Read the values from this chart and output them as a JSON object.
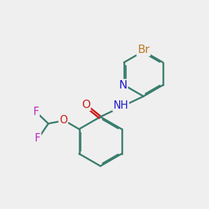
{
  "background_color": "#efefef",
  "bond_color": "#3a7d6e",
  "bond_width": 1.8,
  "dbo": 0.055,
  "atom_colors": {
    "Br": "#b87820",
    "N": "#1818c8",
    "O": "#cc1818",
    "F": "#c020c0",
    "C": "#3a7d6e"
  },
  "font_size": 10.5,
  "figsize": [
    3.0,
    3.0
  ],
  "dpi": 100
}
